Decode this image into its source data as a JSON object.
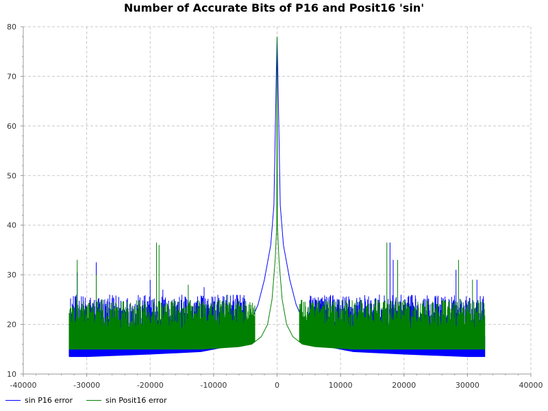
{
  "chart_data": {
    "type": "line",
    "title": "Number of Accurate Bits of P16 and Posit16 'sin'",
    "xlabel": "",
    "ylabel": "",
    "xlim": [
      -40000,
      40000
    ],
    "ylim": [
      10,
      80
    ],
    "xticks": [
      -40000,
      -30000,
      -20000,
      -10000,
      0,
      10000,
      20000,
      30000,
      40000
    ],
    "yticks": [
      10,
      20,
      30,
      40,
      50,
      60,
      70,
      80
    ],
    "grid": true,
    "legend": "bottom-left",
    "series": [
      {
        "name": "sin P16 error",
        "color": "#0000ff",
        "envelope": {
          "x": [
            -32768,
            -30000,
            -20000,
            -12000,
            -8000,
            -5000,
            -3000,
            -2000,
            -1000,
            -500,
            -100,
            0,
            100,
            500,
            1000,
            2000,
            3000,
            5000,
            8000,
            12000,
            20000,
            30000,
            32768
          ],
          "y": [
            13.5,
            13.5,
            14.0,
            14.5,
            15.5,
            18.0,
            24.0,
            29.0,
            36.0,
            44.0,
            72.0,
            78.0,
            72.0,
            44.0,
            36.0,
            29.0,
            24.0,
            18.0,
            15.5,
            14.5,
            14.0,
            13.5,
            13.5
          ]
        },
        "noise_range": [
          -32768,
          -5000,
          5000,
          32768
        ],
        "noise_max": 26,
        "spikes": [
          {
            "x": -31500,
            "y": 30.5
          },
          {
            "x": -28500,
            "y": 32.5
          },
          {
            "x": -20000,
            "y": 29
          },
          {
            "x": -18000,
            "y": 27
          },
          {
            "x": -11500,
            "y": 27.5
          },
          {
            "x": 17800,
            "y": 36.5
          },
          {
            "x": 18300,
            "y": 33
          },
          {
            "x": 28200,
            "y": 31
          },
          {
            "x": 31500,
            "y": 29
          }
        ]
      },
      {
        "name": "sin Posit16 error",
        "color": "#008000",
        "envelope": {
          "x": [
            -32768,
            -30000,
            -20000,
            -12000,
            -6000,
            -4000,
            -2500,
            -1500,
            -800,
            -300,
            -50,
            0,
            50,
            300,
            800,
            1500,
            2500,
            4000,
            6000,
            12000,
            20000,
            30000,
            32768
          ],
          "y": [
            15.0,
            15.0,
            15.0,
            15.0,
            15.5,
            16.0,
            17.5,
            20.0,
            25.0,
            33.0,
            40.0,
            78.0,
            40.0,
            33.0,
            25.0,
            20.0,
            17.5,
            16.0,
            15.5,
            15.0,
            15.0,
            15.0,
            15.0
          ]
        },
        "noise_range": [
          -32768,
          -3500,
          3500,
          32768
        ],
        "noise_max": 25,
        "spikes": [
          {
            "x": -31500,
            "y": 33
          },
          {
            "x": -28500,
            "y": 30
          },
          {
            "x": -19000,
            "y": 36.5
          },
          {
            "x": -18600,
            "y": 36
          },
          {
            "x": -14000,
            "y": 28
          },
          {
            "x": -7800,
            "y": 26
          },
          {
            "x": 17300,
            "y": 36.5
          },
          {
            "x": 19000,
            "y": 33
          },
          {
            "x": 28600,
            "y": 33
          },
          {
            "x": 30800,
            "y": 29
          }
        ]
      }
    ]
  }
}
